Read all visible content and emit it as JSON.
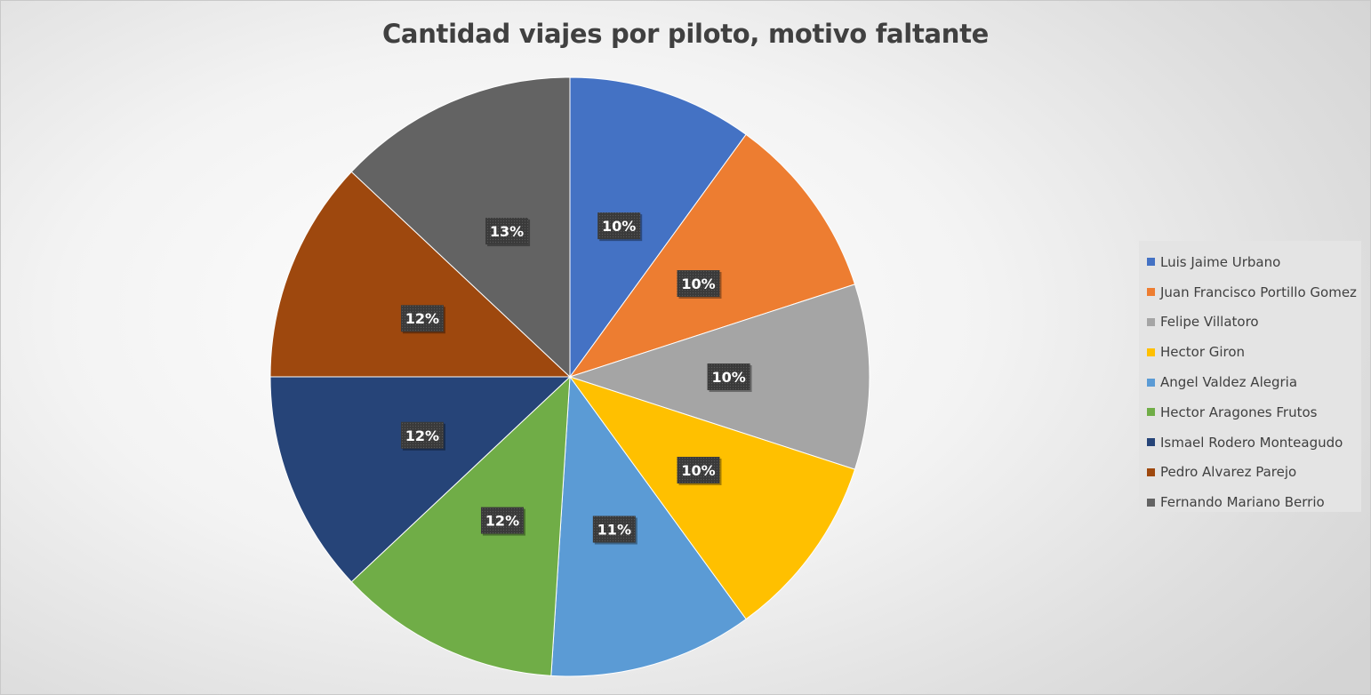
{
  "chart_data": {
    "type": "pie",
    "title": "Cantidad viajes por piloto, motivo faltante",
    "legend_position": "right",
    "slices": [
      {
        "label": "Luis Jaime Urbano",
        "value": 10,
        "display": "10%",
        "color": "#4472C4"
      },
      {
        "label": "Juan Francisco Portillo Gomez",
        "value": 10,
        "display": "10%",
        "color": "#ED7D31"
      },
      {
        "label": "Felipe Villatoro",
        "value": 10,
        "display": "10%",
        "color": "#A5A5A5"
      },
      {
        "label": "Hector Giron",
        "value": 10,
        "display": "10%",
        "color": "#FFC000"
      },
      {
        "label": "Angel Valdez Alegria",
        "value": 11,
        "display": "11%",
        "color": "#5B9BD5"
      },
      {
        "label": "Hector Aragones Frutos",
        "value": 12,
        "display": "12%",
        "color": "#70AD47"
      },
      {
        "label": "Ismael Rodero Monteagudo",
        "value": 12,
        "display": "12%",
        "color": "#264478"
      },
      {
        "label": "Pedro Alvarez Parejo",
        "value": 12,
        "display": "12%",
        "color": "#9E480E"
      },
      {
        "label": "Fernando Mariano Berrio",
        "value": 13,
        "display": "13%",
        "color": "#636363"
      }
    ]
  }
}
